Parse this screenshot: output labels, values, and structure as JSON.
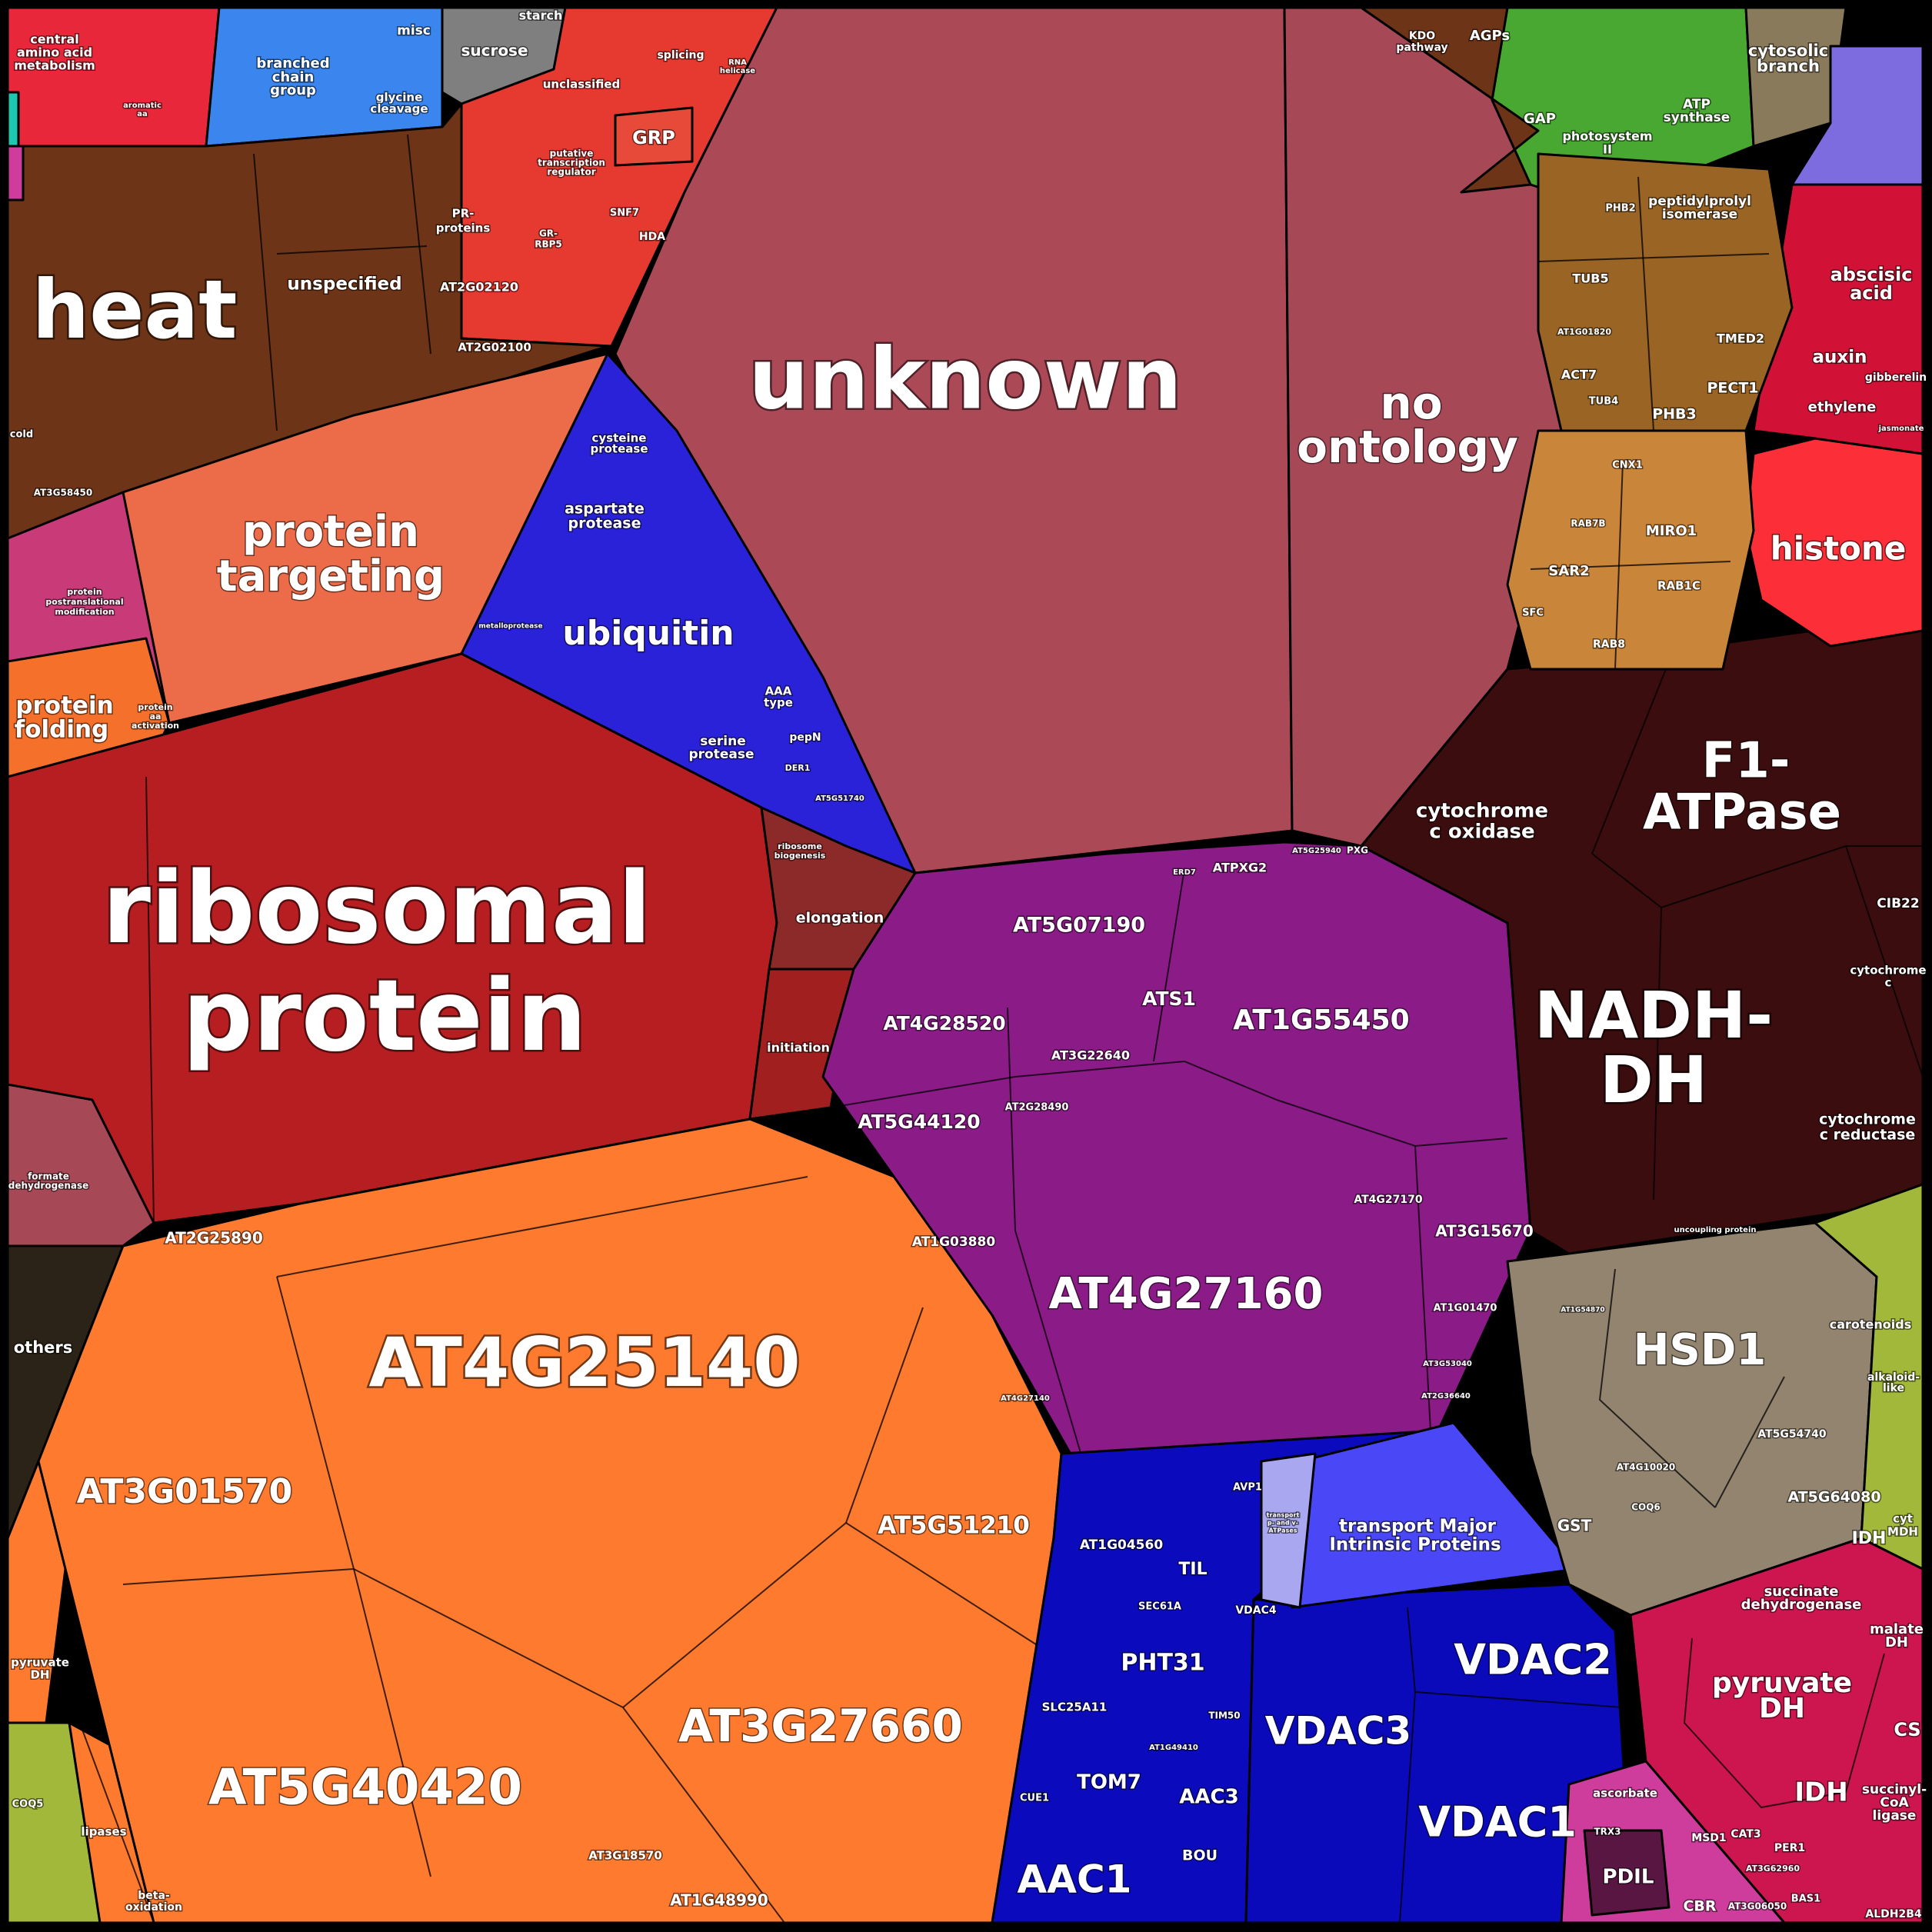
{
  "title": "",
  "palette": {
    "ribosomal": "#b71e22",
    "heat": "#6e3418",
    "orange": "#fd7a2f",
    "unknown": "#ab4957",
    "purple": "#8b1b86",
    "dark_mito": "#3b0d0e",
    "blue": "#1c21d0",
    "dark_blue": "#0b0bbd",
    "protein_targeting": "#ec6c4a",
    "histone": "#fc2f38",
    "abscisic": "#d11236",
    "pyruvate": "#cd1550",
    "hsd": "#92846f",
    "brown_vesicle": "#9a6425",
    "brown_light": "#c9853a",
    "green": "#48a832",
    "blue_light": "#3b86ee",
    "red_small": "#e63a31",
    "gray": "#7f7f7f",
    "mip": "#4a48f6",
    "formate": "#a64856",
    "others": "#2c2318",
    "lipid": "#a2b83a",
    "pink": "#ce3c9c",
    "cytosolic": "#8a7a5c"
  },
  "cells": {
    "ribosomal_protein": {
      "line1": "ribosomal",
      "line2": "protein"
    },
    "unknown": "unknown",
    "no_ontology": {
      "line1": "no",
      "line2": "ontology"
    },
    "heat": "heat",
    "unspecified": "unspecified",
    "at2g02120": "AT2G02120",
    "at2g02100": "AT2G02100",
    "pr_proteins": {
      "line1": "PR-",
      "line2": "proteins"
    },
    "at3g58450": "AT3G58450",
    "cold": "cold",
    "protein_targeting": {
      "line1": "protein",
      "line2": "targeting"
    },
    "protein_folding": {
      "line1": "protein",
      "line2": "folding"
    },
    "protein_postranslational": {
      "line1": "protein",
      "line2": "postranslational",
      "line3": "modification"
    },
    "ubiquitin": "ubiquitin",
    "cysteine_protease": {
      "line1": "cysteine",
      "line2": "protease"
    },
    "aspartate_protease": {
      "line1": "aspartate",
      "line2": "protease"
    },
    "serine_protease": {
      "line1": "serine",
      "line2": "protease"
    },
    "aaa_type": {
      "line1": "AAA",
      "line2": "type"
    },
    "pepn": "pepN",
    "der1": "DER1",
    "at5g51740": "AT5G51740",
    "metalloprotease": "metalloprotease",
    "at4g25140": "AT4G25140",
    "at3g01570": "AT3G01570",
    "at5g40420": "AT5G40420",
    "at3g27660": "AT3G27660",
    "at5g51210": "AT5G51210",
    "at2g25890": "AT2G25890",
    "at3g18570": "AT3G18570",
    "at1g48990": "AT1G48990",
    "at4g27160": "AT4G27160",
    "at5g07190": "AT5G07190",
    "at1g55450": "AT1G55450",
    "at4g28520": "AT4G28520",
    "at5g44120": "AT5G44120",
    "ats1": "ATS1",
    "at3g22640": "AT3G22640",
    "at2g28490": "AT2G28490",
    "at1g03880": "AT1G03880",
    "at4g27170": "AT4G27170",
    "at3g15670": "AT3G15670",
    "at1g01470": "AT1G01470",
    "at3g53040": "AT3G53040",
    "at2g36640": "AT2G36640",
    "at4g27140": "AT4G27140",
    "atpxg2": "ATPXG2",
    "at5g25940": "AT5G25940",
    "pxg": "PXG",
    "erd7": "ERD7",
    "f1_atpase": {
      "line1": "F1-",
      "line2": "ATPase"
    },
    "nadh_dh": {
      "line1": "NADH-",
      "line2": "DH"
    },
    "cytochrome_c_oxidase": {
      "line1": "cytochrome",
      "line2": "c oxidase"
    },
    "cytochrome_c_reductase": {
      "line1": "cytochrome",
      "line2": "c reductase"
    },
    "cytochrome_c": {
      "line1": "cytochrome",
      "line2": "c"
    },
    "cib22": "CIB22",
    "uncoupling_protein": "uncoupling protein",
    "hsd1": "HSD1",
    "at5g54740": "AT5G54740",
    "at5g64080": "AT5G64080",
    "at4g10020": "AT4G10020",
    "gst": "GST",
    "coq6": "COQ6",
    "at1g54870": "AT1G54870",
    "vdac1": "VDAC1",
    "vdac2": "VDAC2",
    "vdac3": "VDAC3",
    "vdac4": "VDAC4",
    "aac1": "AAC1",
    "aac3": "AAC3",
    "tom7": "TOM7",
    "pht31": "PHT31",
    "slc25a11": "SLC25A11",
    "at1g04560": "AT1G04560",
    "til": "TIL",
    "sec61a": "SEC61A",
    "bou": "BOU",
    "cue1": "CUE1",
    "avp1": "AVP1",
    "at1g49410": "AT1G49410",
    "tim50": "TIM50",
    "transport_mip": {
      "line1": "transport Major",
      "line2": "Intrinsic Proteins"
    },
    "transport_atpases": {
      "line1": "transport",
      "line2": "p- and v-",
      "line3": "ATPases"
    },
    "histone": "histone",
    "abscisic_acid": {
      "line1": "abscisic",
      "line2": "acid"
    },
    "auxin": "auxin",
    "ethylene": "ethylene",
    "gibberelin": "gibberelin",
    "jasmonate": "jasmonate",
    "pyruvate_dh": {
      "line1": "pyruvate",
      "line2": "DH"
    },
    "succinate_dh": {
      "line1": "succinate",
      "line2": "dehydrogenase"
    },
    "malate_dh": {
      "line1": "malate",
      "line2": "DH"
    },
    "idh": "IDH",
    "idh2": "IDH",
    "cs": "CS",
    "succinyl_coa": {
      "line1": "succinyl-",
      "line2": "CoA",
      "line3": "ligase"
    },
    "cyt_mdh": {
      "line1": "cyt",
      "line2": "MDH"
    },
    "pdil": "PDIL",
    "cbr": "CBR",
    "msd1": "MSD1",
    "cat3": "CAT3",
    "ascorbate": "ascorbate",
    "per1": "PER1",
    "at3g62960": "AT3G62960",
    "bas1": "BAS1",
    "at3g06050": "AT3G06050",
    "aldh2b4": "ALDH2B4",
    "trx3": "TRX3",
    "carotenoids": "carotenoids",
    "alkaloid_like": {
      "line1": "alkaloid-",
      "line2": "like"
    },
    "peptidylprolyl": {
      "line1": "peptidylprolyl",
      "line2": "isomerase"
    },
    "tub5": "TUB5",
    "tub4": "TUB4",
    "act7": "ACT7",
    "phb3": "PHB3",
    "pect1": "PECT1",
    "tmed2": "TMED2",
    "phb2": "PHB2",
    "at1g01820": "AT1G01820",
    "miro1": "MIRO1",
    "rab1c": "RAB1C",
    "sar2": "SAR2",
    "rab8": "RAB8",
    "rab7b": "RAB7B",
    "cnx1": "CNX1",
    "sfc": "SFC",
    "photosystem_ii": {
      "line1": "photosystem",
      "line2": "II"
    },
    "atp_synthase": {
      "line1": "ATP",
      "line2": "synthase"
    },
    "gap": "GAP",
    "cytosolic_branch": {
      "line1": "cytosolic",
      "line2": "branch"
    },
    "kdo_pathway": {
      "line1": "KDO",
      "line2": "pathway"
    },
    "agps": "AGPs",
    "sucrose": "sucrose",
    "starch": "starch",
    "misc": "misc",
    "branched_chain": {
      "line1": "branched",
      "line2": "chain",
      "line3": "group"
    },
    "glycine_cleavage": {
      "line1": "glycine",
      "line2": "cleavage"
    },
    "central_amino": {
      "line1": "central",
      "line2": "amino acid",
      "line3": "metabolism"
    },
    "aromatic_aa": {
      "line1": "aromatic",
      "line2": "aa"
    },
    "unclassified": "unclassified",
    "grp": "GRP",
    "splicing": "splicing",
    "putative_tr": {
      "line1": "putative",
      "line2": "transcription",
      "line3": "regulator"
    },
    "snf7": "SNF7",
    "hda": "HDA",
    "gr_rbp5": {
      "line1": "GR-",
      "line2": "RBP5"
    },
    "rna_helicase": {
      "line1": "RNA",
      "line2": "helicase"
    },
    "elongation": "elongation",
    "initiation": "initiation",
    "ribosome_biogenesis": {
      "line1": "ribosome",
      "line2": "biogenesis"
    },
    "formate_dh": {
      "line1": "formate",
      "line2": "dehydrogenase"
    },
    "others": "others",
    "pyruvate_dh_left": {
      "line1": "pyruvate",
      "line2": "DH"
    },
    "lipases": "lipases",
    "beta_oxidation": {
      "line1": "beta-",
      "line2": "oxidation"
    },
    "coq5": "COQ5",
    "protein_aa_activation": {
      "line1": "protein",
      "line2": "aa",
      "line3": "activation"
    }
  }
}
